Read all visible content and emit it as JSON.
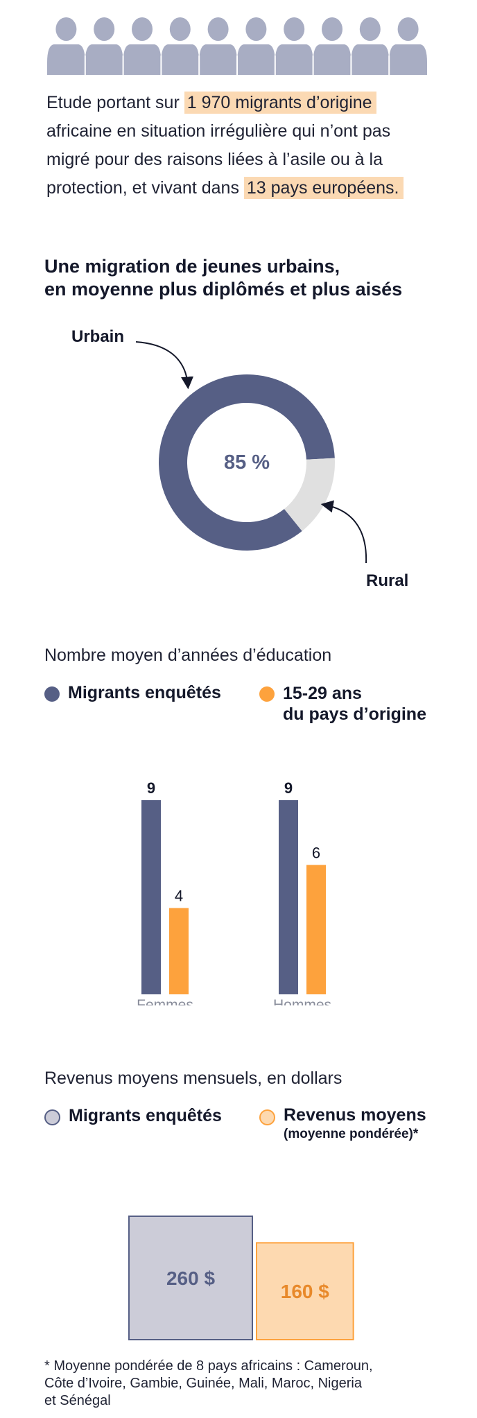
{
  "intro": {
    "text_before": "Etude portant sur ",
    "highlight_1": "1 970 migrants d’origine",
    "text_middle": " africaine en situation irrégulière qui n’ont pas migré pour des raisons liées à l’asile ou à la protection, et vivant dans ",
    "highlight_2": "13 pays européens.",
    "people_icon_count": 10,
    "people_icon": "person-silhouette-icon"
  },
  "colors": {
    "navy": "#565f85",
    "orange": "#fda23d",
    "light_gray": "#e0e0e0",
    "highlight": "#fbd9b3",
    "people": "#a8adc3",
    "income_migrants_fill": "#ccccd8",
    "income_avg_fill": "#fdd9b0"
  },
  "title": {
    "line1": "Une migration de jeunes urbains,",
    "line2": "en moyenne plus diplômés et plus aisés"
  },
  "chart_data": [
    {
      "type": "pie",
      "variant": "donut",
      "slices": [
        {
          "label": "Urbain",
          "value": 85
        },
        {
          "label": "Rural",
          "value": 15
        }
      ],
      "center_label": "85 %"
    },
    {
      "type": "bar",
      "title": "Nombre moyen d’années d’éducation",
      "categories": [
        "Femmes",
        "Hommes"
      ],
      "series": [
        {
          "name": "Migrants enquêtés",
          "values": [
            9,
            9
          ]
        },
        {
          "name": "15-29 ans du pays d’origine",
          "values": [
            4,
            6
          ]
        }
      ],
      "ylim": [
        0,
        9
      ],
      "legend_line1": "15-29 ans",
      "legend_line2": "du pays d’origine",
      "grid": false
    },
    {
      "type": "area",
      "variant": "proportional-squares",
      "title": "Revenus moyens mensuels, en dollars",
      "series": [
        {
          "name": "Migrants enquêtés",
          "value": 260,
          "label": "260 $"
        },
        {
          "name": "Revenus moyens",
          "value": 160,
          "label": "160 $"
        }
      ],
      "legend_sub": "(moyenne pondérée)*"
    }
  ],
  "footnote": {
    "line1": "* Moyenne pondérée de 8 pays africains : Cameroun,",
    "line2": "Côte d’Ivoire, Gambie, Guinée, Mali, Maroc, Nigeria",
    "line3": "et Sénégal"
  }
}
